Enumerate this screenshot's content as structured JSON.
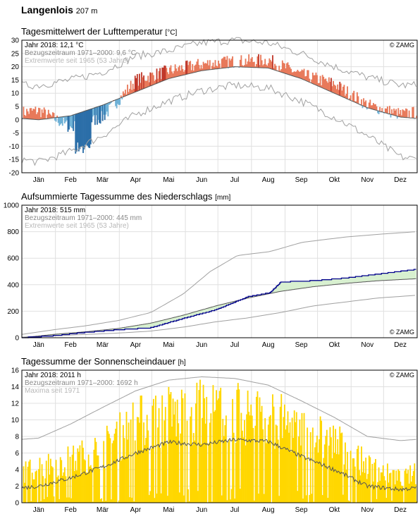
{
  "station": "Langenlois",
  "altitude": "207 m",
  "months": [
    "Jän",
    "Feb",
    "Mär",
    "Apr",
    "Mai",
    "Jun",
    "Jul",
    "Aug",
    "Sep",
    "Okt",
    "Nov",
    "Dez"
  ],
  "colors": {
    "warm": "#e8795a",
    "warm_dark": "#c0392b",
    "cold": "#6fb1d6",
    "cold_dark": "#2b6ea8",
    "precip_year": "#00008b",
    "precip_fill": "#d8f0d0",
    "sun": "#ffd700",
    "normal_line": "#555555",
    "extreme_line": "#a0a0a0",
    "grid": "#e0e0e0"
  },
  "chart_data": [
    {
      "type": "area",
      "title": "Tagesmittelwert der Lufttemperatur",
      "unit": "[°C]",
      "legend": [
        "Jahr 2018: 12,1 °C",
        "Bezugszeitraum 1971–2000: 9,6 °C",
        "Extremwerte seit 1965 (53 Jahre)"
      ],
      "credit": "© ZAMG",
      "ylim": [
        -20,
        30
      ],
      "yticks": [
        -20,
        -15,
        -10,
        -5,
        0,
        5,
        10,
        15,
        20,
        25,
        30
      ],
      "x": "day of year 1–365",
      "series": [
        {
          "name": "Bezugszeitraum 1971–2000",
          "values_monthly": [
            0.0,
            1.5,
            5.5,
            10.5,
            15.5,
            18.5,
            20.0,
            19.5,
            15.5,
            10.0,
            4.5,
            1.0
          ]
        },
        {
          "name": "Jahr 2018",
          "values_monthly": [
            3.5,
            -3.0,
            1.0,
            15.0,
            18.5,
            21.0,
            22.0,
            22.5,
            17.0,
            13.5,
            5.5,
            2.0
          ]
        },
        {
          "name": "Extremwerte seit 1965 max",
          "values_monthly": [
            13,
            15,
            18,
            24,
            26,
            29,
            30,
            29,
            25,
            20,
            16,
            13
          ]
        },
        {
          "name": "Extremwerte seit 1965 min",
          "values_monthly": [
            -16,
            -12,
            -6,
            2,
            7,
            11,
            13,
            12,
            7,
            1,
            -6,
            -14
          ]
        }
      ]
    },
    {
      "type": "line",
      "title": "Aufsummierte Tagessumme des Niederschlags",
      "unit": "[mm]",
      "legend": [
        "Jahr 2018: 515 mm",
        "Bezugszeitraum 1971–2000: 445 mm",
        "Extremwerte seit 1965 (53 Jahre)"
      ],
      "credit": "© ZAMG",
      "ylim": [
        0,
        1000
      ],
      "yticks": [
        0,
        200,
        400,
        600,
        800,
        1000
      ],
      "series": [
        {
          "name": "Jahr 2018",
          "points": [
            [
              1,
              0
            ],
            [
              30,
              15
            ],
            [
              60,
              40
            ],
            [
              90,
              60
            ],
            [
              120,
              75
            ],
            [
              150,
              145
            ],
            [
              180,
              210
            ],
            [
              210,
              310
            ],
            [
              230,
              340
            ],
            [
              240,
              420
            ],
            [
              270,
              430
            ],
            [
              300,
              450
            ],
            [
              330,
              480
            ],
            [
              365,
              515
            ]
          ]
        },
        {
          "name": "Bezugszeitraum 1971–2000",
          "points": [
            [
              1,
              0
            ],
            [
              30,
              25
            ],
            [
              60,
              45
            ],
            [
              90,
              70
            ],
            [
              120,
              110
            ],
            [
              150,
              170
            ],
            [
              180,
              240
            ],
            [
              210,
              300
            ],
            [
              240,
              350
            ],
            [
              270,
              385
            ],
            [
              300,
              410
            ],
            [
              330,
              430
            ],
            [
              365,
              445
            ]
          ]
        },
        {
          "name": "Extremwerte max",
          "points": [
            [
              1,
              25
            ],
            [
              30,
              60
            ],
            [
              60,
              90
            ],
            [
              90,
              130
            ],
            [
              120,
              190
            ],
            [
              150,
              330
            ],
            [
              175,
              500
            ],
            [
              200,
              620
            ],
            [
              230,
              650
            ],
            [
              260,
              720
            ],
            [
              300,
              760
            ],
            [
              330,
              780
            ],
            [
              365,
              800
            ]
          ]
        },
        {
          "name": "Extremwerte min",
          "points": [
            [
              1,
              5
            ],
            [
              30,
              15
            ],
            [
              60,
              25
            ],
            [
              90,
              35
            ],
            [
              120,
              50
            ],
            [
              150,
              80
            ],
            [
              180,
              120
            ],
            [
              210,
              150
            ],
            [
              240,
              190
            ],
            [
              270,
              240
            ],
            [
              300,
              270
            ],
            [
              330,
              300
            ],
            [
              365,
              320
            ]
          ]
        }
      ]
    },
    {
      "type": "bar",
      "title": "Tagessumme der Sonnenscheindauer",
      "unit": "[h]",
      "legend": [
        "Jahr 2018: 2011 h",
        "Bezugszeitraum 1971–2000: 1692 h",
        "Maxima seit 1971"
      ],
      "credit": "© ZAMG",
      "ylim": [
        0,
        16
      ],
      "yticks": [
        0,
        2,
        4,
        6,
        8,
        10,
        12,
        14,
        16
      ],
      "series": [
        {
          "name": "Jahr 2018 monthly max",
          "values_monthly": [
            6,
            7,
            9,
            13,
            14.5,
            15,
            15,
            14,
            12,
            10,
            6,
            4
          ]
        },
        {
          "name": "Bezugszeitraum 1971–2000",
          "values_monthly": [
            2.0,
            3.0,
            4.3,
            6.0,
            7.3,
            7.0,
            7.6,
            7.4,
            5.6,
            4.0,
            2.0,
            1.6
          ]
        },
        {
          "name": "Maxima seit 1971",
          "values_monthly": [
            7.8,
            9.5,
            11.5,
            13.5,
            14.8,
            15.2,
            15.0,
            14.2,
            12.3,
            10.3,
            8.0,
            7.5
          ]
        }
      ]
    }
  ]
}
